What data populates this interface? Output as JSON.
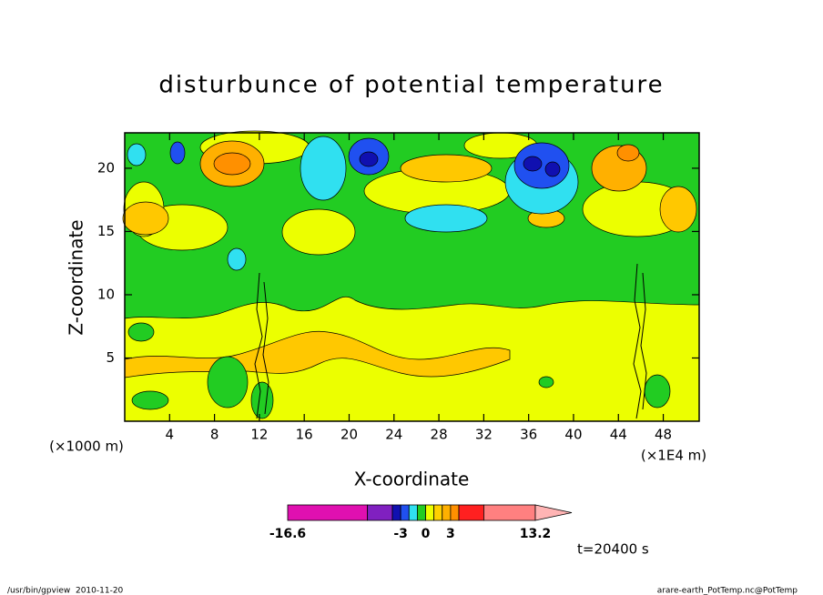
{
  "chart_data": {
    "type": "contour",
    "title": "disturbunce of potential temperature",
    "x_label": "X-coordinate",
    "y_label": "Z-coordinate",
    "x_unit": "(×1E4 m)",
    "y_unit": "(×1000 m)",
    "xlim": [
      0,
      51.2
    ],
    "xticks": [
      4,
      8,
      12,
      16,
      20,
      24,
      28,
      32,
      36,
      40,
      44,
      48
    ],
    "ylim": [
      0,
      22.8
    ],
    "yticks": [
      5,
      10,
      15,
      20
    ],
    "colorbar": {
      "bounds": [
        -16.6,
        -7,
        -4,
        -3,
        -2,
        -1,
        0,
        1,
        2,
        3,
        4,
        7,
        13.2
      ],
      "colors": [
        "#e010b0",
        "#8020c0",
        "#1010b0",
        "#2050f0",
        "#30e0f0",
        "#22cc22",
        "#ecff00",
        "#ffd000",
        "#ffb000",
        "#ff9000",
        "#ff2020",
        "#ff8080"
      ],
      "extend_color": "#ffb4b4",
      "ticks": [
        -16.6,
        -3,
        0,
        3,
        13.2
      ]
    },
    "annotation": "t=20400 s"
  },
  "footer": {
    "left": "/usr/bin/gpview  2010-11-20",
    "right": "arare-earth_PotTemp.nc@PotTemp"
  }
}
